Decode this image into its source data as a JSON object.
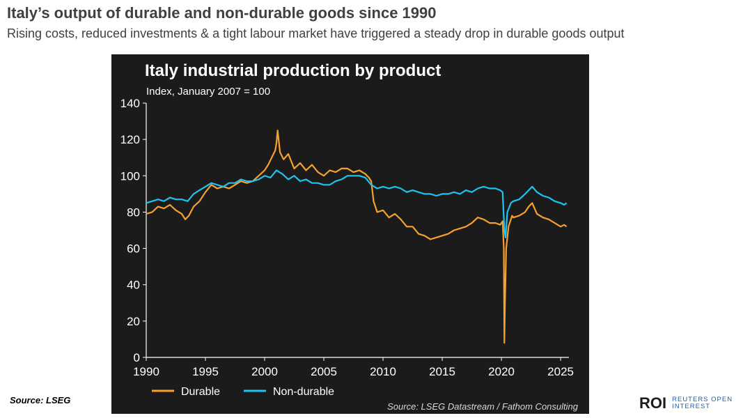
{
  "header": {
    "title": "Italy’s output of durable and non-durable goods since 1990",
    "subtitle": "Rising costs, reduced investments & a tight labour market have triggered a steady drop in durable goods output"
  },
  "footer": {
    "source": "Source: LSEG",
    "logo_mark": "ROI",
    "logo_line1": "REUTERS OPEN",
    "logo_line2": "INTEREST"
  },
  "chart_data": {
    "type": "line",
    "title": "Italy industrial production by product",
    "subtitle": "Index, January 2007 = 100",
    "source": "Source: LSEG Datastream / Fathom Consulting",
    "xlabel": "",
    "ylabel": "",
    "xlim": [
      1990,
      2025.7
    ],
    "ylim": [
      0,
      140
    ],
    "x_ticks": [
      1990,
      1995,
      2000,
      2005,
      2010,
      2015,
      2020,
      2025
    ],
    "y_ticks": [
      0,
      20,
      40,
      60,
      80,
      100,
      120,
      140
    ],
    "grid": false,
    "legend_position": "bottom-left",
    "series": [
      {
        "name": "Durable",
        "color": "#f5a030",
        "x": [
          1990.0,
          1990.5,
          1991.0,
          1991.5,
          1992.0,
          1992.5,
          1993.0,
          1993.3,
          1993.6,
          1994.0,
          1994.5,
          1995.0,
          1995.5,
          1996.0,
          1996.5,
          1997.0,
          1997.5,
          1998.0,
          1998.5,
          1999.0,
          1999.5,
          2000.0,
          2000.3,
          2000.6,
          2000.9,
          2001.0,
          2001.1,
          2001.3,
          2001.6,
          2002.0,
          2002.5,
          2003.0,
          2003.5,
          2004.0,
          2004.5,
          2005.0,
          2005.5,
          2006.0,
          2006.5,
          2007.0,
          2007.5,
          2008.0,
          2008.5,
          2008.8,
          2009.0,
          2009.2,
          2009.5,
          2010.0,
          2010.5,
          2011.0,
          2011.5,
          2012.0,
          2012.5,
          2013.0,
          2013.5,
          2014.0,
          2014.5,
          2015.0,
          2015.5,
          2016.0,
          2016.5,
          2017.0,
          2017.5,
          2018.0,
          2018.5,
          2019.0,
          2019.5,
          2019.9,
          2020.1,
          2020.2,
          2020.25,
          2020.3,
          2020.4,
          2020.6,
          2020.9,
          2021.0,
          2021.5,
          2022.0,
          2022.3,
          2022.6,
          2023.0,
          2023.5,
          2024.0,
          2024.5,
          2025.0,
          2025.3,
          2025.5
        ],
        "values": [
          79,
          80,
          83,
          82,
          84,
          81,
          79,
          76,
          78,
          83,
          86,
          91,
          95,
          93,
          94,
          93,
          95,
          97,
          96,
          97,
          100,
          103,
          106,
          110,
          114,
          118,
          125,
          113,
          109,
          112,
          104,
          107,
          103,
          106,
          102,
          100,
          103,
          102,
          104,
          104,
          102,
          103,
          101,
          99,
          97,
          86,
          80,
          81,
          77,
          79,
          76,
          72,
          72,
          68,
          67,
          65,
          66,
          67,
          68,
          70,
          71,
          72,
          74,
          77,
          76,
          74,
          74,
          73,
          75,
          60,
          8,
          30,
          60,
          72,
          78,
          77,
          78,
          80,
          83,
          85,
          79,
          77,
          76,
          74,
          72,
          73,
          72
        ]
      },
      {
        "name": "Non-durable",
        "color": "#1ec3ef",
        "x": [
          1990.0,
          1990.5,
          1991.0,
          1991.5,
          1992.0,
          1992.5,
          1993.0,
          1993.5,
          1994.0,
          1994.5,
          1995.0,
          1995.5,
          1996.0,
          1996.5,
          1997.0,
          1997.5,
          1998.0,
          1998.5,
          1999.0,
          1999.5,
          2000.0,
          2000.5,
          2001.0,
          2001.5,
          2002.0,
          2002.5,
          2003.0,
          2003.5,
          2004.0,
          2004.5,
          2005.0,
          2005.5,
          2006.0,
          2006.5,
          2007.0,
          2007.5,
          2008.0,
          2008.5,
          2009.0,
          2009.5,
          2010.0,
          2010.5,
          2011.0,
          2011.5,
          2012.0,
          2012.5,
          2013.0,
          2013.5,
          2014.0,
          2014.5,
          2015.0,
          2015.5,
          2016.0,
          2016.5,
          2017.0,
          2017.5,
          2018.0,
          2018.5,
          2019.0,
          2019.5,
          2019.9,
          2020.1,
          2020.25,
          2020.35,
          2020.5,
          2020.8,
          2021.0,
          2021.5,
          2022.0,
          2022.3,
          2022.6,
          2023.0,
          2023.5,
          2024.0,
          2024.5,
          2025.0,
          2025.3,
          2025.5
        ],
        "values": [
          85,
          86,
          87,
          86,
          88,
          87,
          87,
          86,
          90,
          92,
          94,
          96,
          95,
          94,
          96,
          96,
          98,
          97,
          97,
          98,
          100,
          99,
          103,
          101,
          98,
          100,
          97,
          98,
          96,
          96,
          95,
          95,
          97,
          98,
          100,
          100,
          100,
          99,
          95,
          93,
          94,
          93,
          94,
          93,
          91,
          92,
          91,
          90,
          90,
          89,
          90,
          90,
          91,
          90,
          92,
          91,
          93,
          94,
          93,
          93,
          92,
          91,
          70,
          66,
          80,
          85,
          86,
          87,
          90,
          92,
          94,
          91,
          89,
          88,
          86,
          85,
          84,
          85
        ]
      }
    ]
  }
}
